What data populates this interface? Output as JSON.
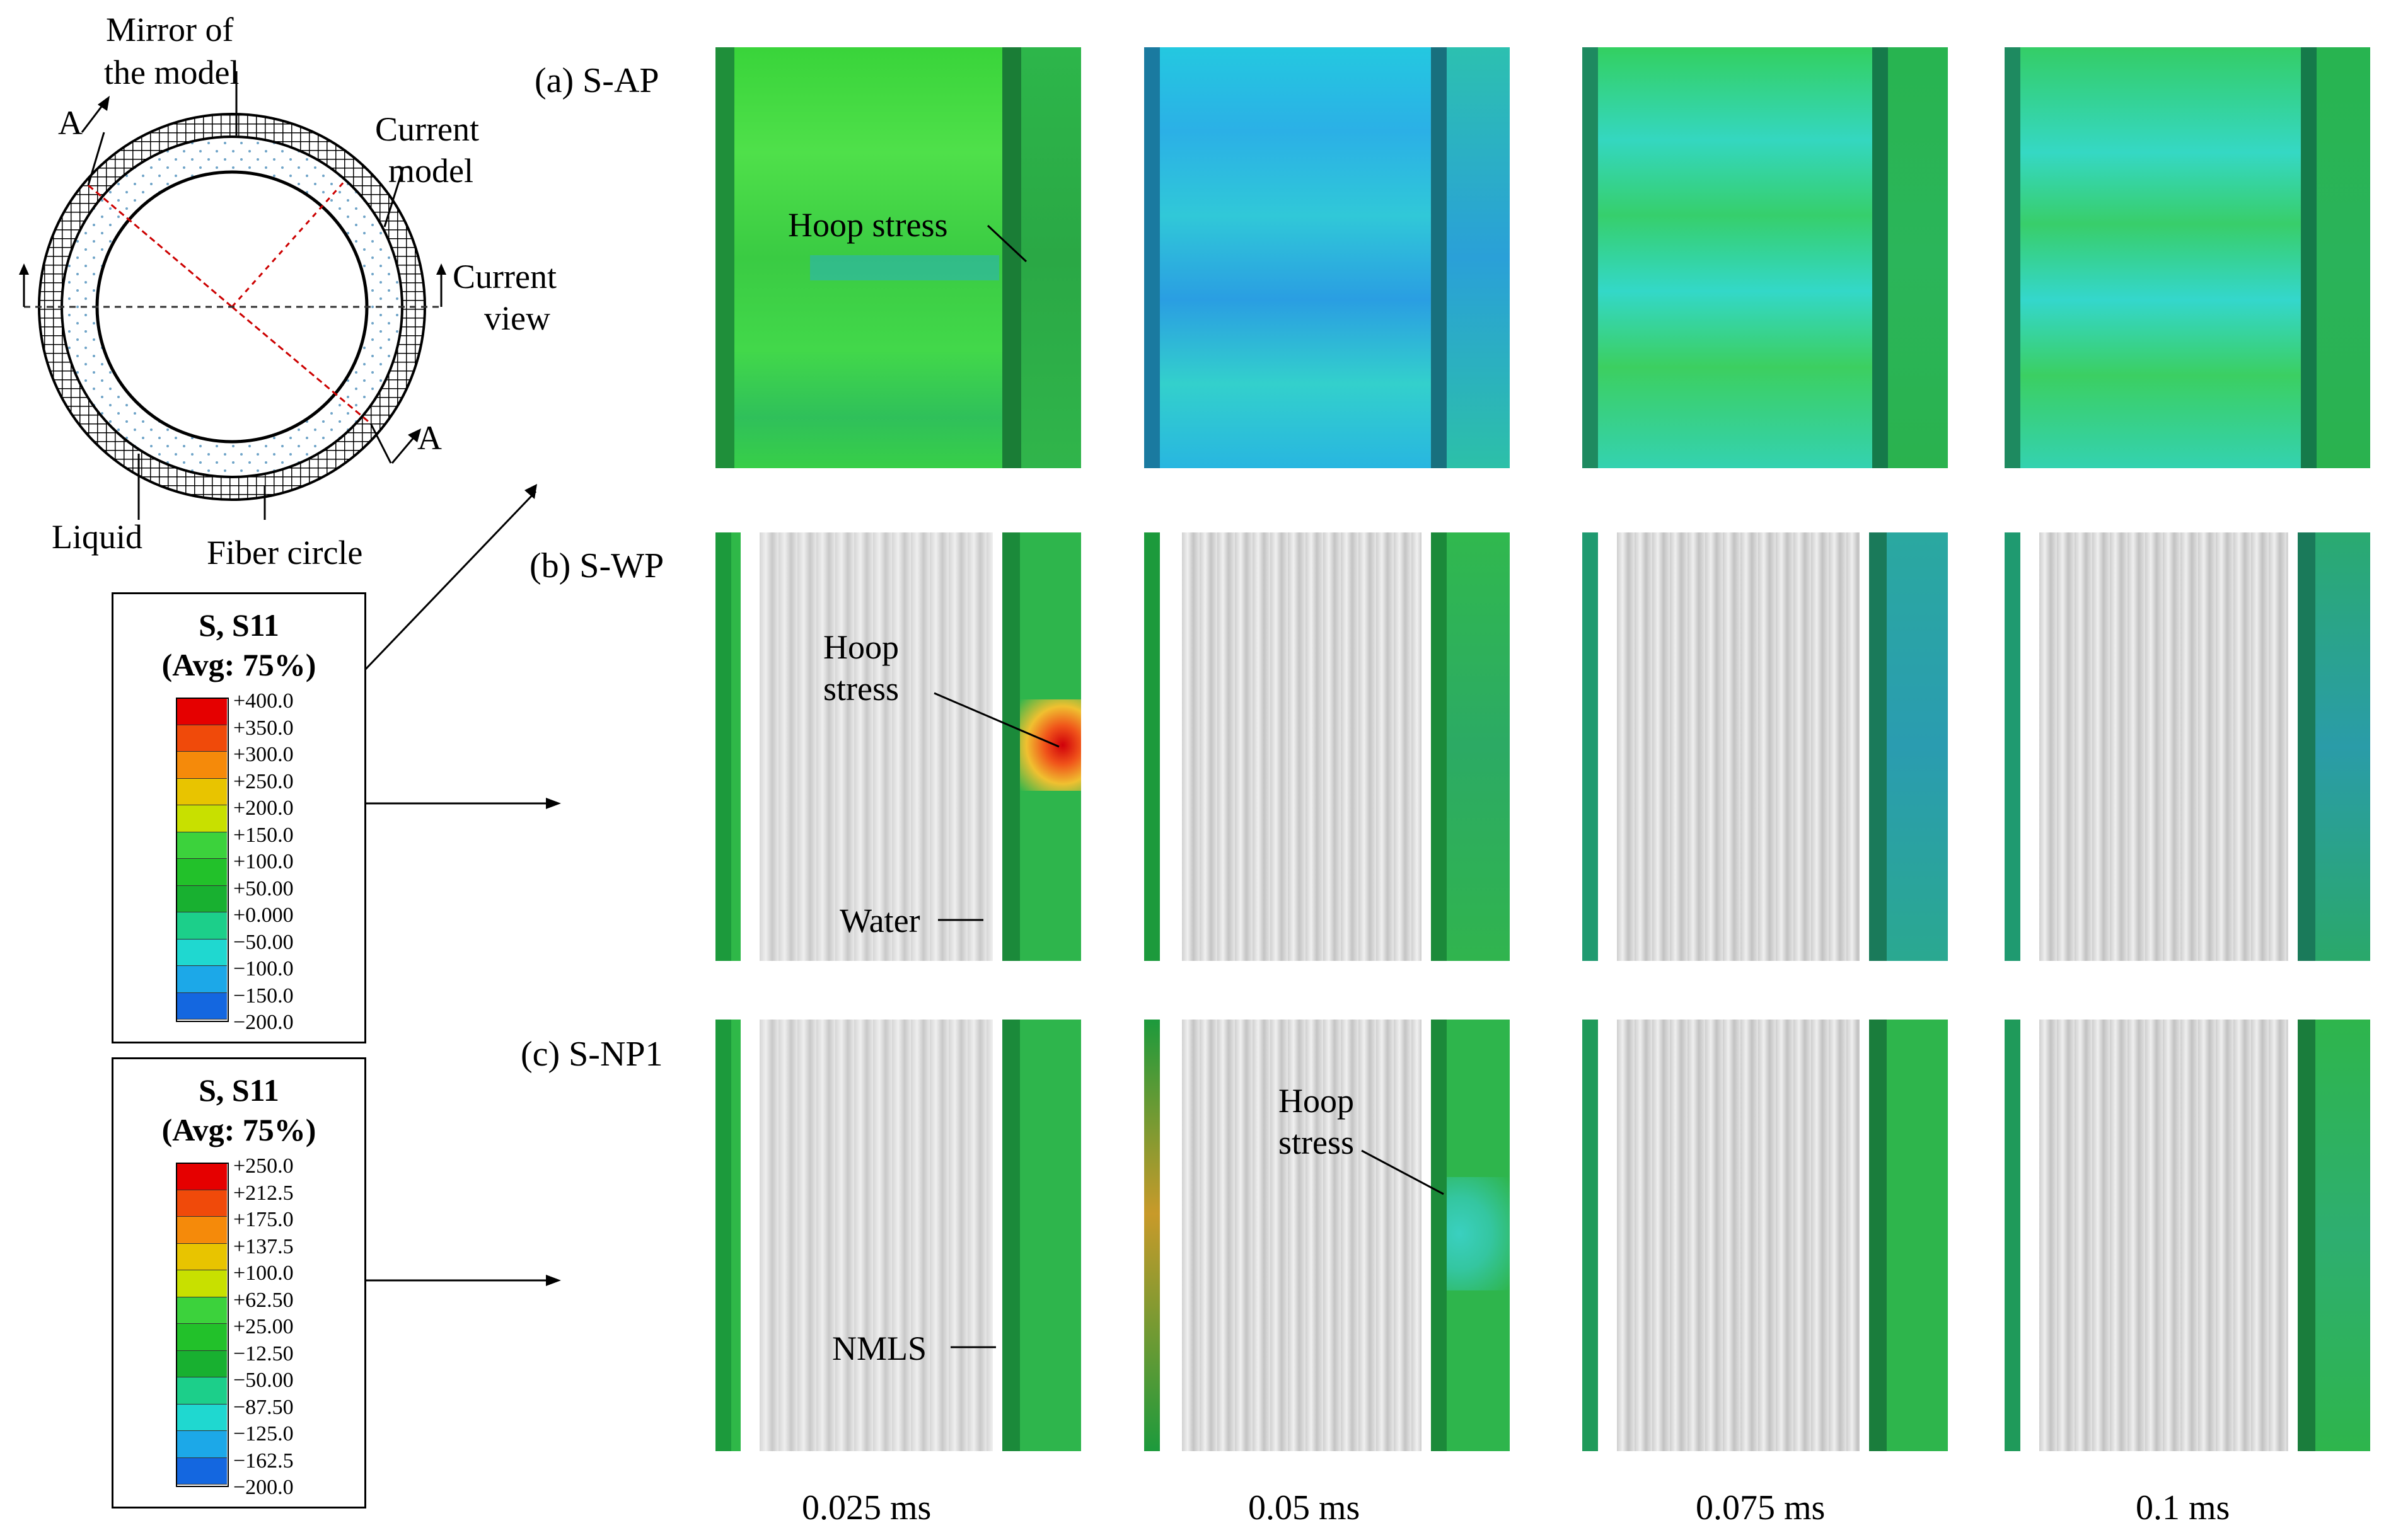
{
  "schematic": {
    "mirror_label_1": "Mirror of",
    "mirror_label_2": "the model",
    "current_model_1": "Current",
    "current_model_2": "model",
    "current_view_1": "Current",
    "current_view_2": "view",
    "section_a_top": "A",
    "section_a_bottom": "A",
    "liquid_label": "Liquid",
    "fiber_label": "Fiber circle"
  },
  "legend1": {
    "title": "S, S11",
    "avg": "(Avg:  75%)",
    "values": [
      "+400.0",
      "+350.0",
      "+300.0",
      "+250.0",
      "+200.0",
      "+150.0",
      "+100.0",
      "+50.00",
      "+0.000",
      "−50.00",
      "−100.0",
      "−150.0",
      "−200.0"
    ]
  },
  "legend2": {
    "title": "S, S11",
    "avg": "(Avg:  75%)",
    "values": [
      "+250.0",
      "+212.5",
      "+175.0",
      "+137.5",
      "+100.0",
      "+62.50",
      "+25.00",
      "−12.50",
      "−50.00",
      "−87.50",
      "−125.0",
      "−162.5",
      "−200.0"
    ]
  },
  "legend_colors": [
    "#e50000",
    "#f04a0a",
    "#f58a0a",
    "#e8c400",
    "#c8e000",
    "#3cd23c",
    "#22c12a",
    "#18b030",
    "#1ccf8a",
    "#1fd8d0",
    "#1ca8e8",
    "#1467e0",
    "#1010d0"
  ],
  "rows": [
    {
      "label": "(a) S-AP",
      "annotation_1": "Hoop stress",
      "annotation_2": ""
    },
    {
      "label": "(b) S-WP",
      "annotation_1": "Hoop",
      "annotation_2": "stress",
      "annotation_3": "Water"
    },
    {
      "label": "(c) S-NP1",
      "annotation_1": "Hoop",
      "annotation_2": "stress",
      "annotation_3": "NMLS"
    }
  ],
  "times": [
    "0.025 ms",
    "0.05 ms",
    "0.075 ms",
    "0.1 ms"
  ]
}
